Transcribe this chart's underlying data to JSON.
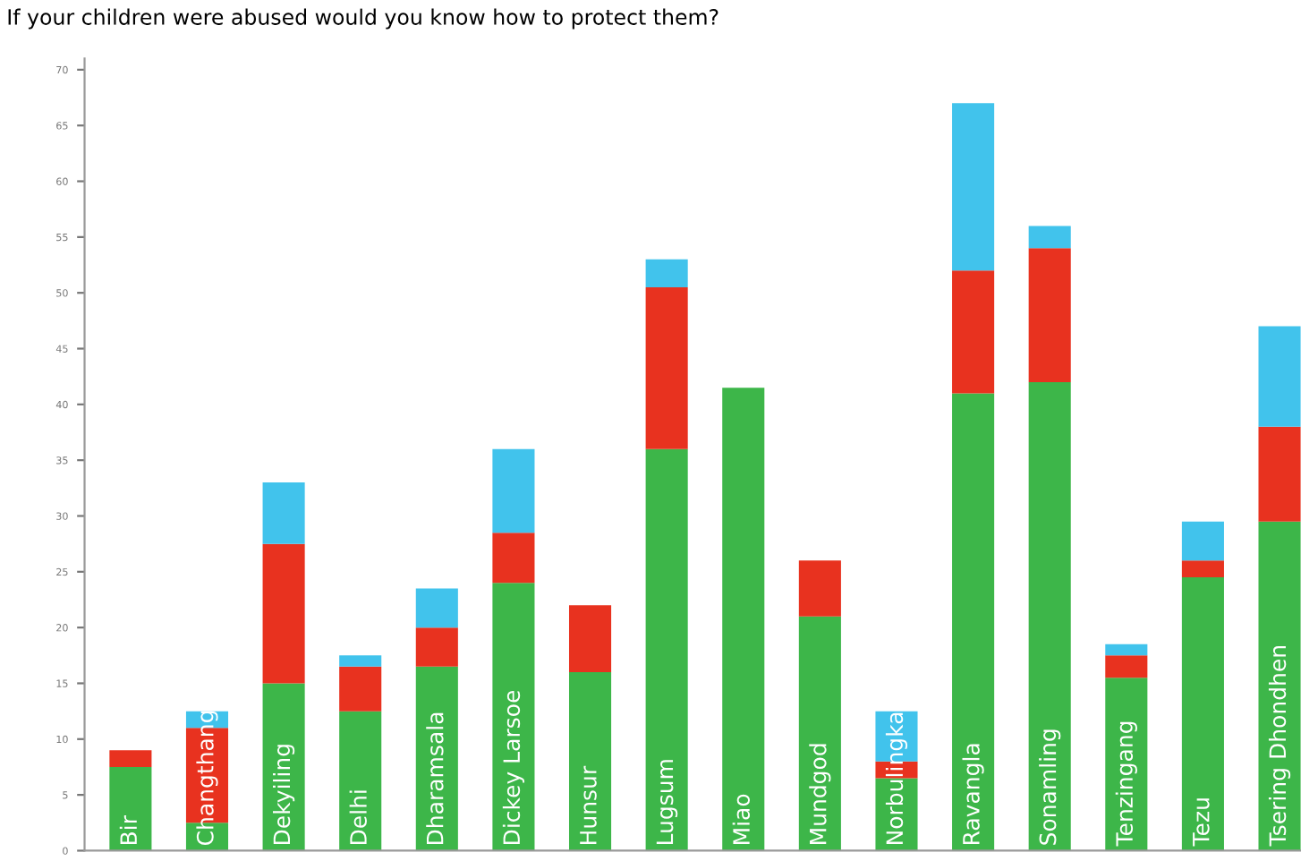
{
  "chart_data": {
    "type": "bar",
    "title": "If your children were abused would you know how to protect them?",
    "categories": [
      "Bir",
      "Changthang",
      "Dekyiling",
      "Delhi",
      "Dharamsala",
      "Dickey Larsoe",
      "Hunsur",
      "Lugsum",
      "Miao",
      "Mundgod",
      "Norbulingka",
      "Ravangla",
      "Sonamling",
      "Tenzingang",
      "Tezu",
      "Tsering Dhondhen"
    ],
    "stacked": true,
    "series": [
      {
        "color": "#3db649",
        "values": [
          7.5,
          2.5,
          15,
          12.5,
          16.5,
          24,
          16,
          36,
          41.5,
          21,
          6.5,
          41,
          42,
          15.5,
          24.5,
          29.5
        ]
      },
      {
        "color": "#e8321f",
        "values": [
          1.5,
          8.5,
          12.5,
          4,
          3.5,
          4.5,
          6,
          14.5,
          null,
          5,
          1.5,
          11,
          12,
          2,
          1.5,
          8.5
        ]
      },
      {
        "color": "#41c3ec",
        "values": [
          null,
          1.5,
          5.5,
          1,
          3.5,
          7.5,
          null,
          2.5,
          null,
          null,
          4.5,
          15,
          2,
          1,
          3.5,
          9
        ]
      }
    ],
    "ylim": [
      0,
      71
    ],
    "yticks": [
      0,
      5,
      10,
      15,
      20,
      25,
      30,
      35,
      40,
      45,
      50,
      55,
      60,
      65,
      70
    ],
    "grid": false,
    "legend": false
  }
}
